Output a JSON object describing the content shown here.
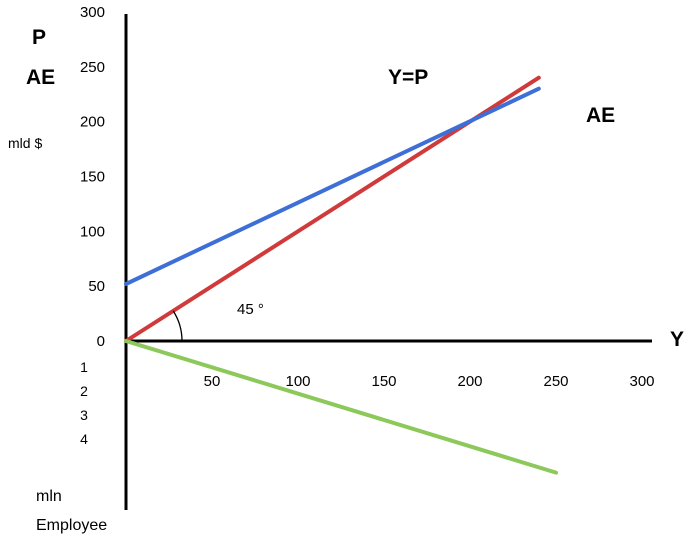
{
  "chart_data": {
    "type": "line",
    "title": "",
    "y_axis": {
      "label_top": "P",
      "label_second": "AE",
      "unit": "mld $",
      "range": [
        0,
        300
      ],
      "ticks": [
        0,
        50,
        100,
        150,
        200,
        250,
        300
      ]
    },
    "x_axis": {
      "label": "Y",
      "range": [
        0,
        300
      ],
      "ticks": [
        50,
        100,
        150,
        200,
        250,
        300
      ]
    },
    "lower_axis": {
      "ticks": [
        "1",
        "2",
        "3",
        "4"
      ],
      "label_line1": "mln",
      "label_line2": "Employee"
    },
    "series": [
      {
        "name": "Y=P",
        "color": "#d03a3a",
        "x": [
          0,
          240
        ],
        "y": [
          0,
          240
        ]
      },
      {
        "name": "AE",
        "color": "#3d6fd6",
        "x": [
          0,
          240
        ],
        "y": [
          52,
          230
        ]
      },
      {
        "name": "",
        "color": "#8cc85a",
        "x": [
          0,
          250
        ],
        "y": [
          0,
          -120
        ]
      }
    ],
    "angle_annotation": "45 °",
    "grid": false,
    "legend": "none"
  }
}
